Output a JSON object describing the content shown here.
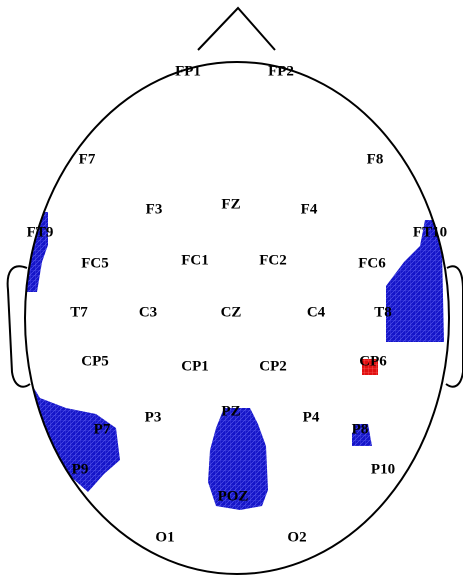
{
  "electrodes": [
    "FP1",
    "FP2",
    "F7",
    "F8",
    "F3",
    "FZ",
    "F4",
    "FT9",
    "FT10",
    "FC5",
    "FC1",
    "FC2",
    "FC6",
    "T7",
    "C3",
    "CZ",
    "C4",
    "T8",
    "CP5",
    "CP1",
    "CP2",
    "CP6",
    "P7",
    "P3",
    "PZ",
    "P4",
    "P8",
    "P9",
    "P10",
    "POZ",
    "O1",
    "O2"
  ]
}
